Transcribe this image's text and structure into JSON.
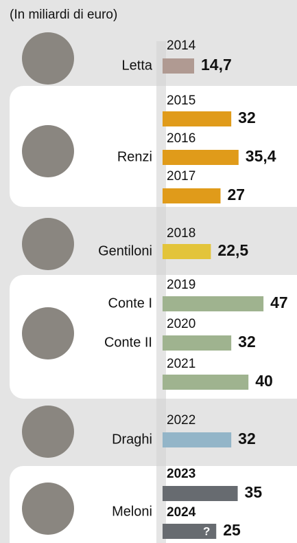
{
  "chart_data": {
    "type": "bar",
    "orientation": "horizontal",
    "subtitle": "(In miliardi di euro)",
    "categories": [
      "2014",
      "2015",
      "2016",
      "2017",
      "2018",
      "2019",
      "2020",
      "2021",
      "2022",
      "2023",
      "2024"
    ],
    "values": [
      14.7,
      32,
      35.4,
      27,
      22.5,
      47,
      32,
      40,
      32,
      35,
      25
    ],
    "value_labels": [
      "14,7",
      "32",
      "35,4",
      "27",
      "22,5",
      "47",
      "32",
      "40",
      "32",
      "35",
      "25"
    ],
    "colors": [
      "#b09a92",
      "#e09b1a",
      "#e09b1a",
      "#e09b1a",
      "#e3c43a",
      "#9fb38f",
      "#9fb38f",
      "#9fb38f",
      "#93b5c8",
      "#676b70",
      "#676b70"
    ],
    "bold_categories": [
      false,
      false,
      false,
      false,
      false,
      false,
      false,
      false,
      false,
      true,
      true
    ],
    "leaders": [
      "Letta",
      "Renzi",
      "Gentiloni",
      "Conte I",
      "Conte II",
      "Draghi",
      "Meloni"
    ],
    "annotation": "?"
  }
}
